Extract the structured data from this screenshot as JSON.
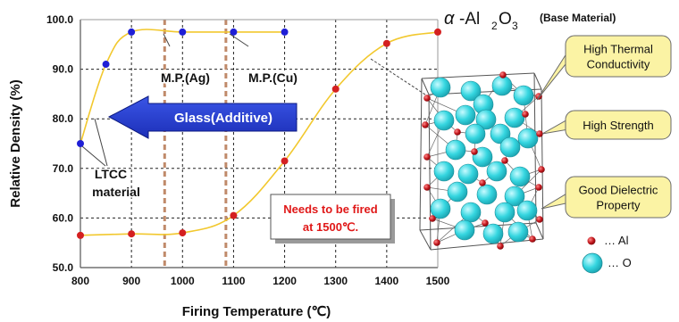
{
  "chart_data": {
    "type": "line",
    "xlabel": "Firing Temperature (℃)",
    "ylabel": "Relative Density (%)",
    "xlim": [
      800,
      1500
    ],
    "ylim": [
      50,
      100
    ],
    "x_ticks": [
      "800",
      "900",
      "1000",
      "1100",
      "1200",
      "1300",
      "1400",
      "1500"
    ],
    "y_ticks": [
      "50.0",
      "60.0",
      "70.0",
      "80.0",
      "90.0",
      "100.0"
    ],
    "grid": true,
    "series": [
      {
        "color": "#1f1fd6",
        "marker": "circle",
        "line_color": "#f2c82e",
        "points": [
          [
            800,
            75
          ],
          [
            850,
            91
          ],
          [
            900,
            97.5
          ],
          [
            1000,
            97.5
          ],
          [
            1100,
            97.5
          ],
          [
            1200,
            97.5
          ]
        ]
      },
      {
        "color": "#d42020",
        "marker": "circle",
        "line_color": "#f2c82e",
        "points": [
          [
            800,
            56.5
          ],
          [
            900,
            56.8
          ],
          [
            1000,
            57
          ],
          [
            1100,
            60.5
          ],
          [
            1200,
            71.5
          ],
          [
            1300,
            86
          ],
          [
            1400,
            95.2
          ],
          [
            1500,
            97.5
          ]
        ]
      }
    ],
    "vertical_markers": [
      {
        "x": 965,
        "color": "#c08a6a"
      },
      {
        "x": 1085,
        "color": "#c08a6a"
      }
    ]
  },
  "annotations": {
    "mp_ag": "M.P.(Ag)",
    "mp_cu": "M.P.(Cu)",
    "glass_arrow": "Glass(Additive)",
    "ltcc_line1": "LTCC",
    "ltcc_line2": "material",
    "fired_line1": "Needs to be fired",
    "fired_line2": "at 1500℃."
  },
  "crystal": {
    "title_alpha": "α",
    "title_formula": "-Al",
    "title_sub2": "2",
    "title_o": "O",
    "title_sub3": "3",
    "title_note": "(Base Material)",
    "callouts": [
      "High Thermal Conductivity",
      "High Strength",
      "Good Dielectric Property"
    ],
    "callout_lines": [
      [
        "High Thermal",
        "Conductivity"
      ],
      [
        "High Strength"
      ],
      [
        "Good Dielectric",
        "Property"
      ]
    ],
    "legend_al": "… Al",
    "legend_o": "… O",
    "colors": {
      "al": "#c0141a",
      "o": "#35d6e0",
      "callout_fill": "#fbf3a4",
      "callout_stroke": "#6a6a6a"
    }
  }
}
